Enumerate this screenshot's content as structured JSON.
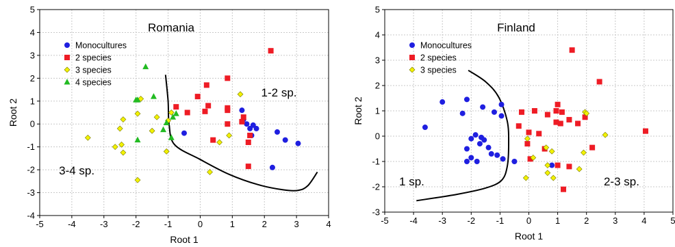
{
  "chart_data": [
    {
      "type": "scatter",
      "title": "Romania",
      "xlabel": "Root 1",
      "ylabel": "Root 2",
      "xlim": [
        -5,
        4
      ],
      "ylim": [
        -4,
        5
      ],
      "xticks": [
        -5,
        -4,
        -3,
        -2,
        -1,
        0,
        1,
        2,
        3,
        4
      ],
      "yticks": [
        -4,
        -3,
        -2,
        -1,
        0,
        1,
        2,
        3,
        4,
        5
      ],
      "grid": true,
      "legend_position": "top-left",
      "annotations": [
        {
          "text": "1-2 sp.",
          "x": 1.9,
          "y": 1.2
        },
        {
          "text": "3-4 sp.",
          "x": -4.4,
          "y": -2.2
        }
      ],
      "boundary": [
        [
          -1.08,
          2.15
        ],
        [
          -1.0,
          1.0
        ],
        [
          -0.97,
          0.0
        ],
        [
          -0.8,
          -0.9
        ],
        [
          0.0,
          -1.55
        ],
        [
          0.9,
          -2.2
        ],
        [
          1.8,
          -2.65
        ],
        [
          2.6,
          -2.88
        ],
        [
          3.05,
          -2.9
        ],
        [
          3.35,
          -2.7
        ],
        [
          3.65,
          -2.1
        ]
      ],
      "series": [
        {
          "name": "Monocultures",
          "marker": "circle",
          "color": "#1f1fe0",
          "points": [
            [
              1.3,
              0.6
            ],
            [
              1.35,
              0.2
            ],
            [
              1.45,
              0.0
            ],
            [
              1.55,
              -0.2
            ],
            [
              1.65,
              -0.05
            ],
            [
              1.75,
              -0.2
            ],
            [
              1.6,
              -0.5
            ],
            [
              2.4,
              -0.35
            ],
            [
              2.65,
              -0.7
            ],
            [
              3.05,
              -0.85
            ],
            [
              2.25,
              -1.9
            ],
            [
              -0.5,
              -0.4
            ]
          ]
        },
        {
          "name": "2 species",
          "marker": "square",
          "color": "#ee1c25",
          "points": [
            [
              2.2,
              3.2
            ],
            [
              0.85,
              2.0
            ],
            [
              0.2,
              1.7
            ],
            [
              -0.08,
              1.2
            ],
            [
              0.85,
              0.7
            ],
            [
              0.85,
              0.6
            ],
            [
              1.35,
              0.3
            ],
            [
              1.3,
              0.1
            ],
            [
              0.15,
              0.55
            ],
            [
              0.25,
              0.8
            ],
            [
              -0.4,
              0.5
            ],
            [
              -0.75,
              0.75
            ],
            [
              0.85,
              0.0
            ],
            [
              0.4,
              -0.7
            ],
            [
              1.5,
              -0.8
            ],
            [
              1.55,
              -0.5
            ],
            [
              1.5,
              -1.85
            ]
          ]
        },
        {
          "name": "3 species",
          "marker": "diamond",
          "color": "#f2f200",
          "points": [
            [
              -3.5,
              -0.6
            ],
            [
              -2.4,
              0.2
            ],
            [
              -2.5,
              -0.2
            ],
            [
              -2.45,
              -0.9
            ],
            [
              -2.65,
              -1.0
            ],
            [
              -2.4,
              -1.25
            ],
            [
              -1.95,
              0.45
            ],
            [
              -1.85,
              1.1
            ],
            [
              -1.5,
              -0.3
            ],
            [
              -1.35,
              0.3
            ],
            [
              -1.0,
              0.15
            ],
            [
              -1.05,
              -1.2
            ],
            [
              -0.9,
              0.5
            ],
            [
              -1.95,
              -2.45
            ],
            [
              0.6,
              -0.8
            ],
            [
              0.9,
              -0.5
            ],
            [
              1.25,
              1.3
            ],
            [
              0.3,
              -2.1
            ]
          ]
        },
        {
          "name": "4 species",
          "marker": "triangle",
          "color": "#22bb22",
          "points": [
            [
              -1.7,
              2.5
            ],
            [
              -1.95,
              1.05
            ],
            [
              -2.0,
              1.05
            ],
            [
              -1.45,
              1.2
            ],
            [
              -1.15,
              -0.25
            ],
            [
              -1.05,
              0.05
            ],
            [
              -0.85,
              0.3
            ],
            [
              -0.75,
              0.45
            ],
            [
              -1.95,
              -0.7
            ],
            [
              -0.9,
              -0.6
            ]
          ]
        }
      ]
    },
    {
      "type": "scatter",
      "title": "Finland",
      "xlabel": "Root 1",
      "ylabel": "Root 2",
      "xlim": [
        -5,
        5
      ],
      "ylim": [
        -3,
        5
      ],
      "xticks": [
        -5,
        -4,
        -3,
        -2,
        -1,
        0,
        1,
        2,
        3,
        4,
        5
      ],
      "yticks": [
        -3,
        -2,
        -1,
        0,
        1,
        2,
        3,
        4,
        5
      ],
      "grid": true,
      "legend_position": "top-left",
      "annotations": [
        {
          "text": "1 sp.",
          "x": -4.5,
          "y": -1.95
        },
        {
          "text": "2-3 sp.",
          "x": 2.6,
          "y": -1.95
        }
      ],
      "boundary": [
        [
          -2.1,
          2.6
        ],
        [
          -1.5,
          2.15
        ],
        [
          -1.05,
          1.55
        ],
        [
          -0.75,
          0.6
        ],
        [
          -0.7,
          -0.3
        ],
        [
          -0.75,
          -1.2
        ],
        [
          -0.95,
          -1.75
        ],
        [
          -1.5,
          -2.05
        ],
        [
          -2.5,
          -2.3
        ],
        [
          -3.9,
          -2.55
        ]
      ],
      "series": [
        {
          "name": "Monocultures",
          "marker": "circle",
          "color": "#1f1fe0",
          "points": [
            [
              -3.0,
              1.35
            ],
            [
              -2.15,
              1.45
            ],
            [
              -2.3,
              0.9
            ],
            [
              -1.6,
              1.15
            ],
            [
              -1.2,
              0.95
            ],
            [
              -0.95,
              1.25
            ],
            [
              -3.6,
              0.35
            ],
            [
              -2.0,
              -0.1
            ],
            [
              -1.85,
              0.05
            ],
            [
              -1.65,
              -0.05
            ],
            [
              -1.55,
              -0.15
            ],
            [
              -1.7,
              -0.3
            ],
            [
              -1.4,
              -0.45
            ],
            [
              -0.95,
              0.8
            ],
            [
              -2.15,
              -0.5
            ],
            [
              -1.3,
              -0.7
            ],
            [
              -1.1,
              -0.75
            ],
            [
              -2.0,
              -0.85
            ],
            [
              -2.15,
              -1.0
            ],
            [
              -1.8,
              -1.0
            ],
            [
              -0.9,
              -0.9
            ],
            [
              -0.5,
              -1.0
            ],
            [
              0.8,
              -1.15
            ]
          ]
        },
        {
          "name": "2 species",
          "marker": "square",
          "color": "#ee1c25",
          "points": [
            [
              1.5,
              3.4
            ],
            [
              2.45,
              2.15
            ],
            [
              1.0,
              1.25
            ],
            [
              0.95,
              1.0
            ],
            [
              1.15,
              0.95
            ],
            [
              0.65,
              0.85
            ],
            [
              0.2,
              1.0
            ],
            [
              -0.25,
              0.95
            ],
            [
              1.4,
              0.65
            ],
            [
              0.95,
              0.55
            ],
            [
              1.1,
              0.5
            ],
            [
              1.95,
              0.75
            ],
            [
              1.7,
              0.5
            ],
            [
              -0.35,
              0.4
            ],
            [
              4.05,
              0.2
            ],
            [
              0.0,
              0.15
            ],
            [
              0.35,
              0.1
            ],
            [
              -0.05,
              -0.3
            ],
            [
              0.55,
              -0.5
            ],
            [
              0.05,
              -0.9
            ],
            [
              2.2,
              -0.45
            ],
            [
              1.0,
              -1.15
            ],
            [
              1.4,
              -1.2
            ],
            [
              1.2,
              -2.1
            ]
          ]
        },
        {
          "name": "3 species",
          "marker": "diamond",
          "color": "#f2f200",
          "points": [
            [
              1.95,
              0.95
            ],
            [
              2.0,
              0.9
            ],
            [
              2.65,
              0.05
            ],
            [
              1.9,
              -0.65
            ],
            [
              -0.05,
              -0.1
            ],
            [
              0.15,
              -0.85
            ],
            [
              0.6,
              -0.45
            ],
            [
              0.8,
              -0.6
            ],
            [
              0.65,
              -1.15
            ],
            [
              0.65,
              -1.45
            ],
            [
              0.85,
              -1.65
            ],
            [
              1.75,
              -1.3
            ],
            [
              -0.1,
              -1.65
            ]
          ]
        }
      ]
    }
  ]
}
